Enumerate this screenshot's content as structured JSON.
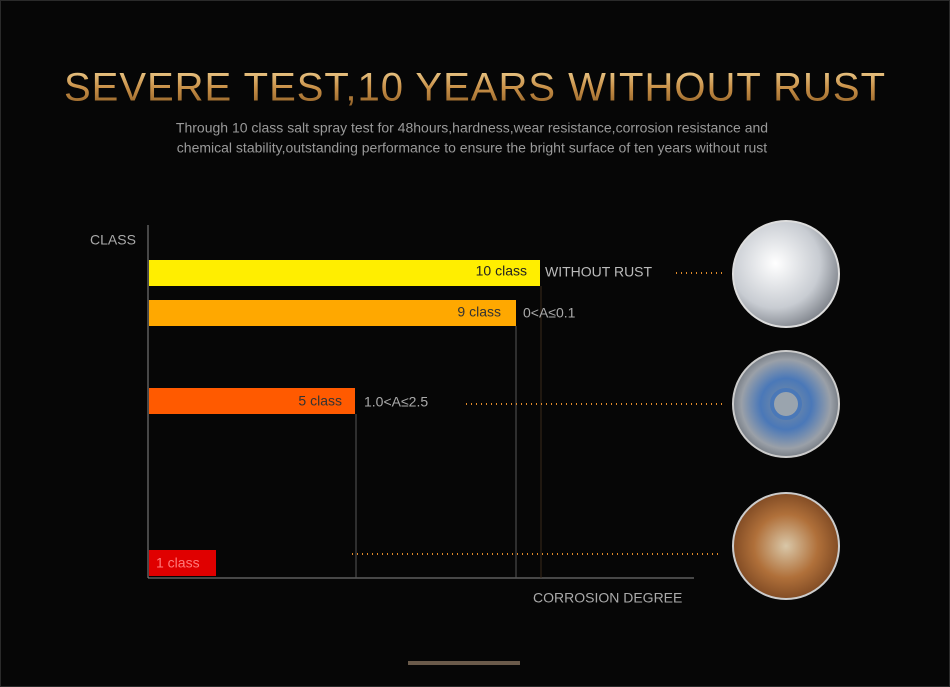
{
  "header": {
    "title": "SEVERE TEST,10 YEARS WITHOUT RUST",
    "subtitle_lines": [
      "Through 10 class salt spray test for 48hours,hardness,wear resistance,corrosion resistance and",
      "chemical stability,outstanding performance to ensure the bright surface of ten years without rust"
    ]
  },
  "chart": {
    "y_axis_label": "CLASS",
    "x_axis_label": "CORROSION DEGREE",
    "bars": [
      {
        "label": "10 class",
        "note": "WITHOUT RUST"
      },
      {
        "label": "9 class",
        "note": "0<A≤0.1"
      },
      {
        "label": "5 class",
        "note": "1.0<A≤2.5"
      },
      {
        "label": "1 class"
      }
    ]
  }
}
